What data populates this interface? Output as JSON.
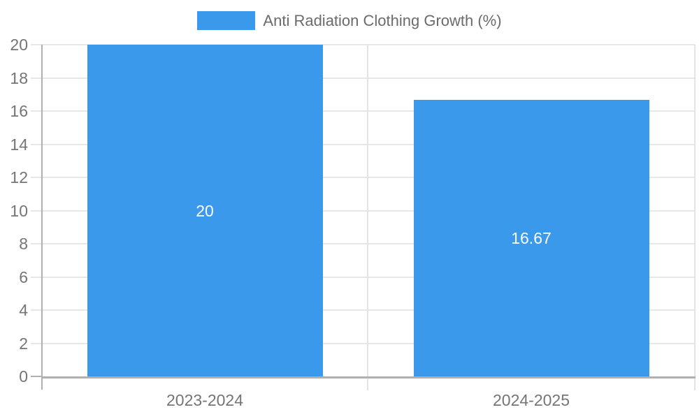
{
  "chart_data": {
    "type": "bar",
    "legend_label": "Anti Radiation Clothing Growth (%)",
    "legend_position": "top-center",
    "categories": [
      "2023-2024",
      "2024-2025"
    ],
    "series": [
      {
        "name": "Anti Radiation Clothing Growth (%)",
        "color": "#3b99ec",
        "values": [
          20,
          16.67
        ],
        "value_labels": [
          "20",
          "16.67"
        ]
      }
    ],
    "ylim": [
      0,
      20
    ],
    "yticks": [
      0,
      2,
      4,
      6,
      8,
      10,
      12,
      14,
      16,
      18,
      20
    ],
    "grid": true,
    "xlabel": "",
    "ylabel": ""
  },
  "colors": {
    "bar": "#3b99ec",
    "grid_line": "#e7e7e7",
    "boundary_line": "#e4e4e4",
    "axis_line": "#b0b0b0",
    "tick_label": "#757575",
    "legend_text": "#6b6b6b",
    "bar_label": "#ffffff",
    "background": "#ffffff"
  }
}
